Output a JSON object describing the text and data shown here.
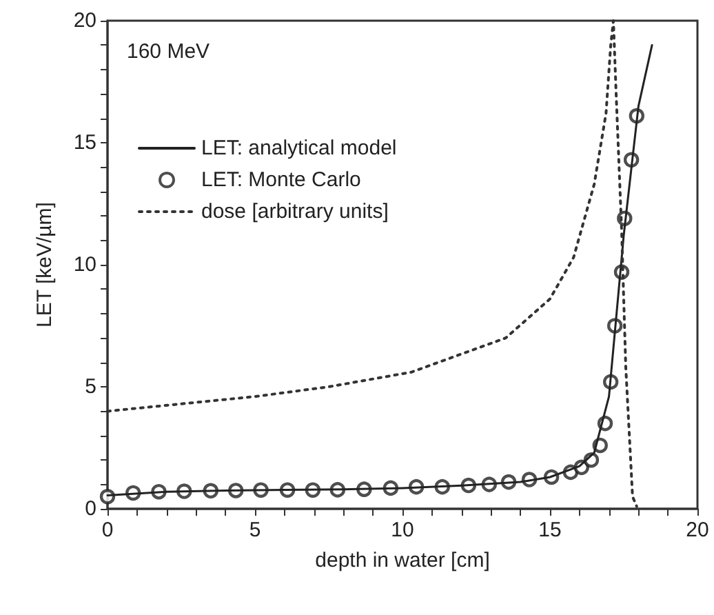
{
  "chart_data": {
    "type": "line",
    "xlabel": "depth in water [cm]",
    "ylabel": "LET [keV/µm]",
    "annotations": [
      "160 MeV"
    ],
    "xlim": [
      0,
      20
    ],
    "ylim": [
      0,
      20
    ],
    "xticks": [
      0,
      {
        "value": 1,
        "label": null
      },
      {
        "value": 2,
        "label": null
      },
      {
        "value": 3,
        "label": null
      },
      {
        "value": 4,
        "label": null
      },
      5,
      {
        "value": 6,
        "label": null
      },
      {
        "value": 7,
        "label": null
      },
      {
        "value": 8,
        "label": null
      },
      {
        "value": 9,
        "label": null
      },
      10,
      {
        "value": 11,
        "label": null
      },
      {
        "value": 12,
        "label": null
      },
      {
        "value": 13,
        "label": null
      },
      {
        "value": 14,
        "label": null
      },
      15,
      {
        "value": 16,
        "label": null
      },
      {
        "value": 17,
        "label": null
      },
      {
        "value": 18,
        "label": null
      },
      {
        "value": 19,
        "label": null
      },
      20
    ],
    "yticks": [
      0,
      {
        "value": 1,
        "label": null
      },
      {
        "value": 2,
        "label": null
      },
      {
        "value": 3,
        "label": null
      },
      {
        "value": 4,
        "label": null
      },
      5,
      {
        "value": 6,
        "label": null
      },
      {
        "value": 7,
        "label": null
      },
      {
        "value": 8,
        "label": null
      },
      {
        "value": 9,
        "label": null
      },
      10,
      {
        "value": 11,
        "label": null
      },
      {
        "value": 12,
        "label": null
      },
      {
        "value": 13,
        "label": null
      },
      {
        "value": 14,
        "label": null
      },
      15,
      {
        "value": 16,
        "label": null
      },
      {
        "value": 17,
        "label": null
      },
      {
        "value": 18,
        "label": null
      },
      {
        "value": 19,
        "label": null
      },
      20
    ],
    "grid": false,
    "legend": "top left",
    "series": [
      {
        "name": "LET: analytical model",
        "type": "line",
        "color": "#222222",
        "marker": "none",
        "line_style": "solid",
        "x": [
          0,
          2,
          4,
          6,
          8,
          10,
          12,
          14,
          15,
          16,
          16.5,
          17,
          17.5,
          18,
          18.46
        ],
        "values": [
          0.55,
          0.7,
          0.75,
          0.78,
          0.8,
          0.85,
          0.95,
          1.1,
          1.3,
          1.75,
          2.3,
          4.6,
          11.2,
          16.5,
          19.0
        ]
      },
      {
        "name": "LET: Monte Carlo",
        "type": "scatter",
        "color": "#222222",
        "marker": "circle",
        "x": [
          0,
          0.87,
          1.74,
          2.6,
          3.5,
          4.35,
          5.2,
          6.1,
          6.96,
          7.8,
          8.7,
          9.6,
          10.47,
          11.35,
          12.24,
          12.94,
          13.6,
          14.3,
          15.05,
          15.7,
          16.07,
          16.4,
          16.7,
          16.87,
          17.06,
          17.2,
          17.43,
          17.53,
          17.76,
          17.94
        ],
        "values": [
          0.5,
          0.65,
          0.7,
          0.72,
          0.74,
          0.75,
          0.77,
          0.77,
          0.77,
          0.78,
          0.8,
          0.85,
          0.9,
          0.9,
          0.96,
          1.0,
          1.1,
          1.2,
          1.3,
          1.5,
          1.7,
          2.0,
          2.6,
          3.5,
          5.2,
          7.5,
          9.7,
          11.9,
          14.3,
          16.1
        ]
      },
      {
        "name": "dose [arbitrary units]",
        "type": "line",
        "color": "#333333",
        "marker": "none",
        "line_style": "dotted",
        "x": [
          0,
          2.5,
          5,
          7.5,
          10.3,
          11.9,
          13.5,
          15.0,
          15.8,
          16.5,
          16.9,
          17.06,
          17.15,
          17.24,
          17.43,
          17.57,
          17.8,
          17.94
        ],
        "values": [
          4.0,
          4.3,
          4.6,
          5.0,
          5.6,
          6.3,
          7.0,
          8.6,
          10.3,
          13.3,
          16.2,
          19.0,
          20,
          17.1,
          11.4,
          5.8,
          0.5,
          0.1
        ]
      }
    ]
  }
}
